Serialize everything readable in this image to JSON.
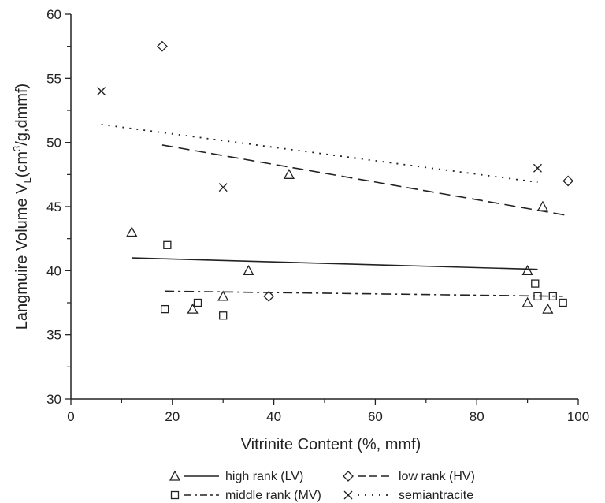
{
  "chart_data": {
    "type": "scatter",
    "title": "",
    "xlabel": "Vitrinite Content (%, mmf)",
    "ylabel_main": "Langmuire Volume V",
    "ylabel_sub": "L",
    "ylabel_rest_a": "(cm",
    "ylabel_sup": "3",
    "ylabel_rest_b": "/g,dmmf)",
    "xlim": [
      0,
      100
    ],
    "ylim": [
      30,
      60
    ],
    "x_ticks": [
      0,
      20,
      40,
      60,
      80,
      100
    ],
    "y_ticks": [
      30,
      35,
      40,
      45,
      50,
      55,
      60
    ],
    "grid": false,
    "legend_position": "bottom",
    "series": [
      {
        "name": "high rank (LV)",
        "marker": "triangle",
        "line_style": "solid",
        "points": [
          [
            12,
            43
          ],
          [
            24,
            37
          ],
          [
            30,
            38
          ],
          [
            35,
            40
          ],
          [
            43,
            47.5
          ],
          [
            90,
            40
          ],
          [
            90,
            37.5
          ],
          [
            93,
            45
          ],
          [
            94,
            37
          ]
        ],
        "fit": [
          [
            12,
            41
          ],
          [
            92,
            40.1
          ]
        ]
      },
      {
        "name": "low rank (HV)",
        "marker": "diamond",
        "line_style": "dashed",
        "points": [
          [
            18,
            57.5
          ],
          [
            39,
            38
          ],
          [
            98,
            47
          ]
        ],
        "fit": [
          [
            18,
            49.8
          ],
          [
            98,
            44.3
          ]
        ]
      },
      {
        "name": "middle rank (MV)",
        "marker": "square",
        "line_style": "dashdot",
        "points": [
          [
            18.5,
            37
          ],
          [
            19,
            42
          ],
          [
            25,
            37.5
          ],
          [
            30,
            36.5
          ],
          [
            91.5,
            39
          ],
          [
            92,
            38
          ],
          [
            95,
            38
          ],
          [
            97,
            37.5
          ]
        ],
        "fit": [
          [
            18.5,
            38.4
          ],
          [
            97,
            38
          ]
        ]
      },
      {
        "name": "semiantracite",
        "marker": "cross",
        "line_style": "dotted",
        "points": [
          [
            6,
            54
          ],
          [
            30,
            46.5
          ],
          [
            92,
            48
          ]
        ],
        "fit": [
          [
            6,
            51.4
          ],
          [
            92,
            46.9
          ]
        ]
      }
    ]
  },
  "colors": {
    "ink": "#222222"
  }
}
